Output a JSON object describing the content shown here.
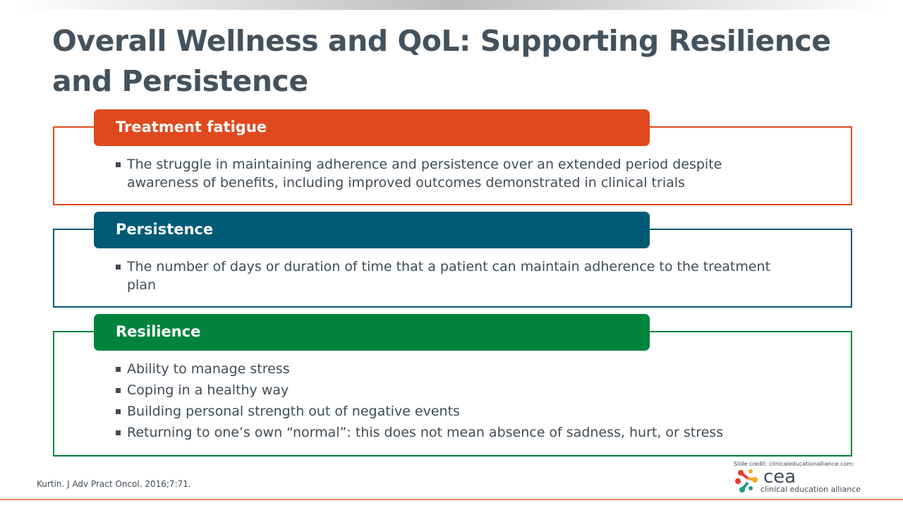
{
  "title": "Overall Wellness and QoL: Supporting Resilience and Persistence",
  "sections": [
    {
      "heading": "Treatment fatigue",
      "color": "#e0491e",
      "bullets": [
        "The struggle in maintaining adherence and persistence over an extended period despite awareness of benefits, including improved outcomes demonstrated in clinical trials"
      ]
    },
    {
      "heading": "Persistence",
      "color": "#005a76",
      "bullets": [
        "The number of days or duration of time that a patient can maintain adherence to the treatment plan"
      ]
    },
    {
      "heading": "Resilience",
      "color": "#00843d",
      "bullets": [
        "Ability to manage stress",
        "Coping in a healthy way",
        "Building personal strength out of negative events",
        "Returning to one’s own “normal”: this does not mean absence of sadness, hurt, or stress"
      ]
    }
  ],
  "reference": "Kurtin. J Adv Pract Oncol. 2016;7:71.",
  "credit": "Slide credit: clinicaleducationalliance.com:",
  "logo": {
    "mark": "cea",
    "name": "clinical education alliance"
  }
}
